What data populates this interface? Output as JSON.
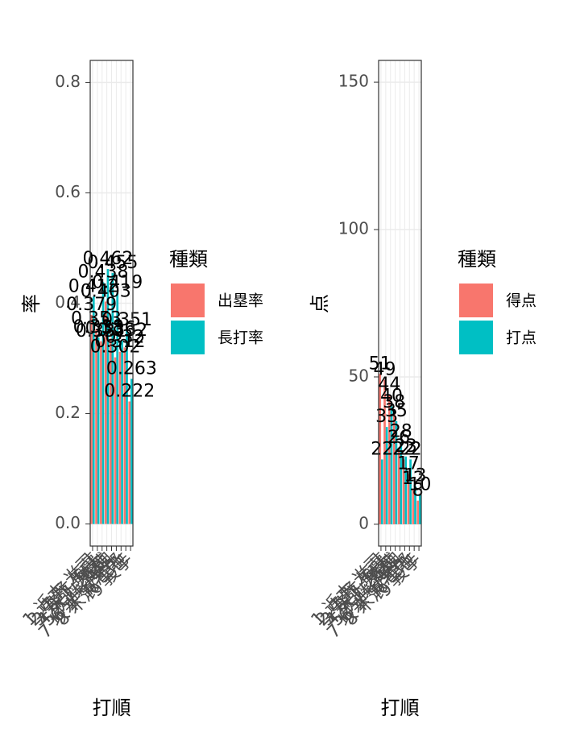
{
  "chart_data": [
    {
      "type": "bar",
      "x_label": "打順",
      "y_label": "率",
      "legend_title": "種類",
      "categories": [
        "1 近本 光司",
        "2 中野 拓夢",
        "3 森下 翔太",
        "4 大山 悠輔",
        "5 佐藤 輝明",
        "6 ノイジー",
        "7 坂本 誠志郎",
        "8 木浪 聖也",
        "9 投手"
      ],
      "series": [
        {
          "name": "出塁率",
          "color": "#f8766d",
          "values": [
            0.379,
            0.353,
            0.331,
            0.403,
            0.336,
            0.302,
            0.312,
            0.32,
            0.222
          ]
        },
        {
          "name": "長打率",
          "color": "#00bfc4",
          "values": [
            0.412,
            0.338,
            0.438,
            0.462,
            0.455,
            0.419,
            0.332,
            0.351,
            0.263
          ]
        }
      ],
      "ylim": [
        -0.04,
        0.84
      ],
      "yticks": [
        {
          "value": 0,
          "label": "0.0"
        },
        0.2,
        0.4,
        0.6,
        0.8
      ],
      "grid": true
    },
    {
      "type": "bar",
      "x_label": "打順",
      "y_label": "点",
      "legend_title": "種類",
      "categories": [
        "1 近本 光司",
        "2 中野 拓夢",
        "3 森下 翔太",
        "4 大山 悠輔",
        "5 佐藤 輝明",
        "6 ノイジー",
        "7 坂本 誠志郎",
        "8 木浪 聖也",
        "9 投手"
      ],
      "series": [
        {
          "name": "得点",
          "color": "#f8766d",
          "values": [
            51,
            49,
            44,
            38,
            26,
            22,
            17,
            12,
            8
          ]
        },
        {
          "name": "打点",
          "color": "#00bfc4",
          "values": [
            22,
            33,
            40,
            35,
            28,
            23,
            22,
            13,
            10
          ]
        }
      ],
      "ylim": [
        -7.4,
        157.4
      ],
      "yticks": [
        0,
        50,
        100,
        150
      ],
      "grid": true
    }
  ]
}
